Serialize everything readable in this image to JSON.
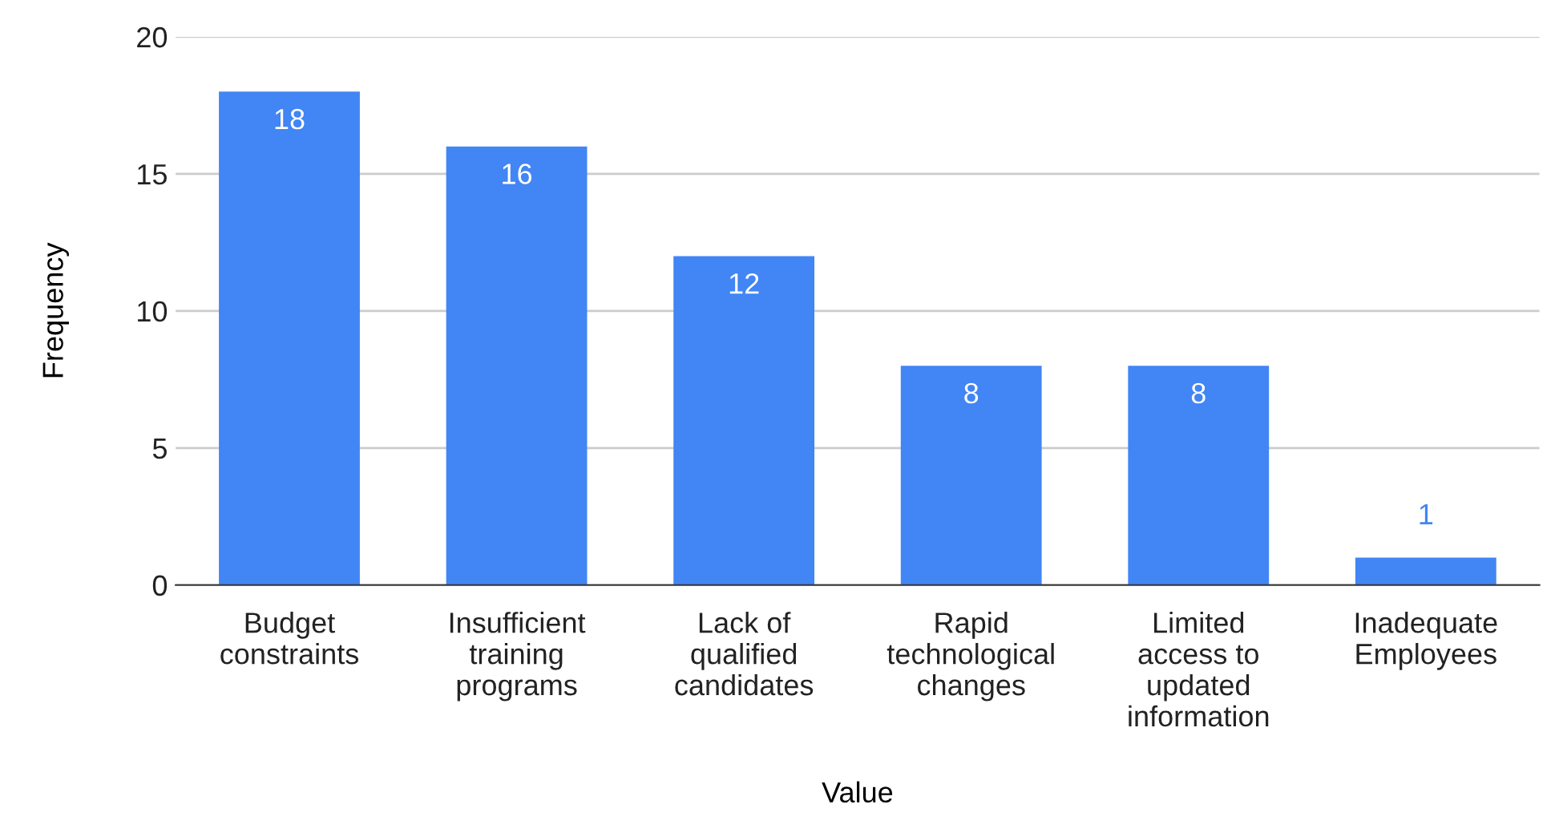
{
  "chart_data": {
    "type": "bar",
    "xlabel": "Value",
    "ylabel": "Frequency",
    "categories": [
      "Budget\nconstraints",
      "Insufficient\ntraining\nprograms",
      "Lack of\nqualified\ncandidates",
      "Rapid\ntechnological\nchanges",
      "Limited\naccess to\nupdated\ninformation",
      "Inadequate\nEmployees"
    ],
    "values": [
      18,
      16,
      12,
      8,
      8,
      1
    ],
    "color": "#4285f4",
    "ylim": [
      0,
      20
    ],
    "yticks": [
      0,
      5,
      10,
      15,
      20
    ],
    "grid": "y",
    "data_labels": true,
    "legend": false
  }
}
